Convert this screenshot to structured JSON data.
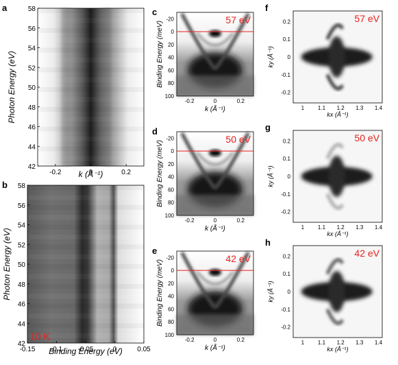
{
  "figure": {
    "panel_letters": [
      "a",
      "b",
      "c",
      "d",
      "e",
      "f",
      "g",
      "h"
    ],
    "temperature_label": "10 K",
    "accent_color": "#e8201c",
    "colormap": "grayscale (white = low intensity, black = high intensity)"
  },
  "chart_data": [
    {
      "panel": "a",
      "type": "heatmap",
      "xlabel": "k (Å⁻¹)",
      "ylabel": "Photon Energy (eV)",
      "xticks": [
        "-0.2",
        "0",
        "0.2"
      ],
      "yticks": [
        "42",
        "44",
        "46",
        "48",
        "50",
        "52",
        "54",
        "56",
        "58"
      ],
      "xlim": [
        -0.3,
        0.3
      ],
      "ylim": [
        42,
        58
      ]
    },
    {
      "panel": "b",
      "type": "heatmap",
      "xlabel": "Binding Energy (eV)",
      "ylabel": "Photon Energy (eV)",
      "xticks": [
        "-0.15",
        "-0.1",
        "-0.05",
        "0",
        "0.05"
      ],
      "yticks": [
        "42",
        "44",
        "46",
        "48",
        "50",
        "52",
        "54",
        "56",
        "58"
      ],
      "xlim": [
        -0.15,
        0.05
      ],
      "ylim": [
        42,
        58
      ],
      "annotation": "10 K"
    },
    {
      "panel": "c",
      "type": "heatmap",
      "photon_energy": "57 eV",
      "xlabel": "k (Å⁻¹)",
      "ylabel": "Binding Energy (meV)",
      "xticks": [
        "-0.2",
        "0",
        "0.2"
      ],
      "yticks": [
        "-20",
        "0",
        "20",
        "40",
        "60",
        "80",
        "100"
      ],
      "xlim": [
        -0.3,
        0.3
      ],
      "ylim": [
        100,
        -30
      ],
      "fermi_level_meV": 0
    },
    {
      "panel": "d",
      "type": "heatmap",
      "photon_energy": "50 eV",
      "xlabel": "k (Å⁻¹)",
      "ylabel": "Binding Energy (meV)",
      "xticks": [
        "-0.2",
        "0",
        "0.2"
      ],
      "yticks": [
        "-20",
        "0",
        "20",
        "40",
        "60",
        "80",
        "100"
      ],
      "xlim": [
        -0.3,
        0.3
      ],
      "ylim": [
        100,
        -30
      ],
      "fermi_level_meV": 0
    },
    {
      "panel": "e",
      "type": "heatmap",
      "photon_energy": "42 eV",
      "xlabel": "k (Å⁻¹)",
      "ylabel": "Binding Energy (meV)",
      "xticks": [
        "-0.2",
        "0",
        "0.2"
      ],
      "yticks": [
        "-20",
        "0",
        "20",
        "40",
        "60",
        "80",
        "100"
      ],
      "xlim": [
        -0.3,
        0.3
      ],
      "ylim": [
        100,
        -30
      ],
      "fermi_level_meV": 0
    },
    {
      "panel": "f",
      "type": "heatmap",
      "photon_energy": "57 eV",
      "xlabel": "kx (Å⁻¹)",
      "ylabel": "ky (Å⁻¹)",
      "xticks": [
        "1",
        "1.1",
        "1.2",
        "1.3",
        "1.4"
      ],
      "yticks": [
        "-0.2",
        "-0.1",
        "0",
        "0.1",
        "0.2"
      ],
      "xlim": [
        0.95,
        1.42
      ],
      "ylim": [
        -0.26,
        0.26
      ]
    },
    {
      "panel": "g",
      "type": "heatmap",
      "photon_energy": "50 eV",
      "xlabel": "kx (Å⁻¹)",
      "ylabel": "ky (Å⁻¹)",
      "xticks": [
        "1",
        "1.1",
        "1.2",
        "1.3",
        "1.4"
      ],
      "yticks": [
        "-0.2",
        "-0.1",
        "0",
        "0.1",
        "0.2"
      ],
      "xlim": [
        0.95,
        1.42
      ],
      "ylim": [
        -0.26,
        0.26
      ]
    },
    {
      "panel": "h",
      "type": "heatmap",
      "photon_energy": "42 eV",
      "xlabel": "kx (Å⁻¹)",
      "ylabel": "ky (Å⁻¹)",
      "xticks": [
        "1",
        "1.1",
        "1.2",
        "1.3",
        "1.4"
      ],
      "yticks": [
        "-0.2",
        "-0.1",
        "0",
        "0.1",
        "0.2"
      ],
      "xlim": [
        0.95,
        1.42
      ],
      "ylim": [
        -0.26,
        0.26
      ]
    }
  ]
}
